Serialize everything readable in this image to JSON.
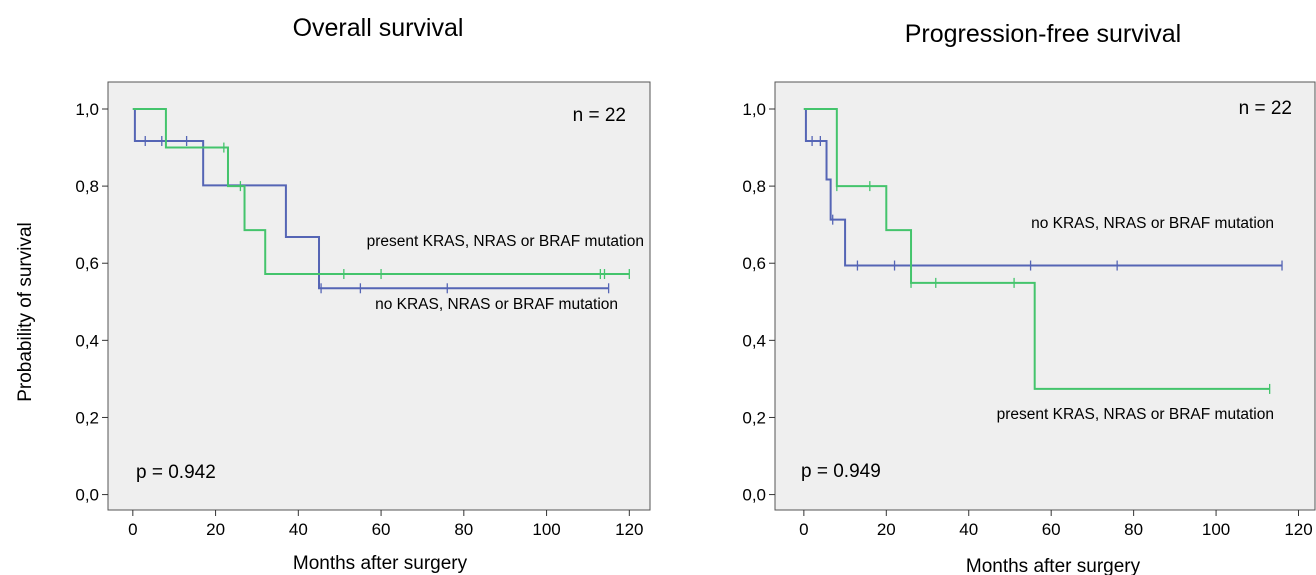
{
  "chart_data": [
    {
      "type": "line",
      "step": "post",
      "title": "Overall survival",
      "xlabel": "Months after surgery",
      "ylabel": "Probability of survival",
      "xlim": [
        -6,
        125
      ],
      "ylim": [
        -0.04,
        1.07
      ],
      "xticks": [
        0,
        20,
        40,
        60,
        80,
        100,
        120
      ],
      "xtick_labels": [
        "0",
        "20",
        "40",
        "60",
        "80",
        "100",
        "120"
      ],
      "yticks": [
        0,
        0.2,
        0.4,
        0.6,
        0.8,
        1.0
      ],
      "ytick_labels": [
        "0,0",
        "0,2",
        "0,4",
        "0,6",
        "0,8",
        "1,0"
      ],
      "grid": false,
      "annotations": {
        "n_label": "n = 22",
        "p_label": "p = 0.942"
      },
      "series": [
        {
          "name": "no KRAS, NRAS or BRAF mutation",
          "color": "#5565b5",
          "x": [
            0,
            0.5,
            17,
            37,
            45,
            115
          ],
          "y": [
            1.0,
            0.917,
            0.802,
            0.668,
            0.535,
            0.535
          ],
          "censored_x": [
            3,
            7,
            13,
            45.5,
            55,
            76,
            115
          ]
        },
        {
          "name": "present KRAS, NRAS or BRAF mutation",
          "color": "#44c46c",
          "x": [
            0,
            8,
            23,
            27,
            32,
            120
          ],
          "y": [
            1.0,
            0.9,
            0.8,
            0.686,
            0.572,
            0.572
          ],
          "censored_x": [
            22,
            26,
            51,
            60,
            113,
            114,
            120
          ]
        }
      ]
    },
    {
      "type": "line",
      "step": "post",
      "title": "Progression-free survival",
      "xlabel": "Months after surgery",
      "ylabel": "",
      "xlim": [
        -7,
        124
      ],
      "ylim": [
        -0.04,
        1.07
      ],
      "xticks": [
        0,
        20,
        40,
        60,
        80,
        100,
        120
      ],
      "xtick_labels": [
        "0",
        "20",
        "40",
        "60",
        "80",
        "100",
        "120"
      ],
      "yticks": [
        0,
        0.2,
        0.4,
        0.6,
        0.8,
        1.0
      ],
      "ytick_labels": [
        "0,0",
        "0,2",
        "0,4",
        "0,6",
        "0,8",
        "1,0"
      ],
      "grid": false,
      "annotations": {
        "n_label": "n = 22",
        "p_label": "p = 0.949"
      },
      "series": [
        {
          "name": "no KRAS, NRAS or BRAF mutation",
          "color": "#5565b5",
          "x": [
            0,
            0.5,
            5.5,
            6.5,
            10,
            116
          ],
          "y": [
            1.0,
            0.917,
            0.817,
            0.713,
            0.594,
            0.594
          ],
          "censored_x": [
            2,
            4,
            7,
            13,
            22,
            55,
            76,
            116
          ]
        },
        {
          "name": "present KRAS, NRAS or BRAF mutation",
          "color": "#44c46c",
          "x": [
            0,
            8,
            20,
            26,
            56,
            113
          ],
          "y": [
            1.0,
            0.8,
            0.686,
            0.549,
            0.274,
            0.274
          ],
          "censored_x": [
            8,
            16,
            26,
            32,
            51,
            113
          ]
        }
      ]
    }
  ]
}
